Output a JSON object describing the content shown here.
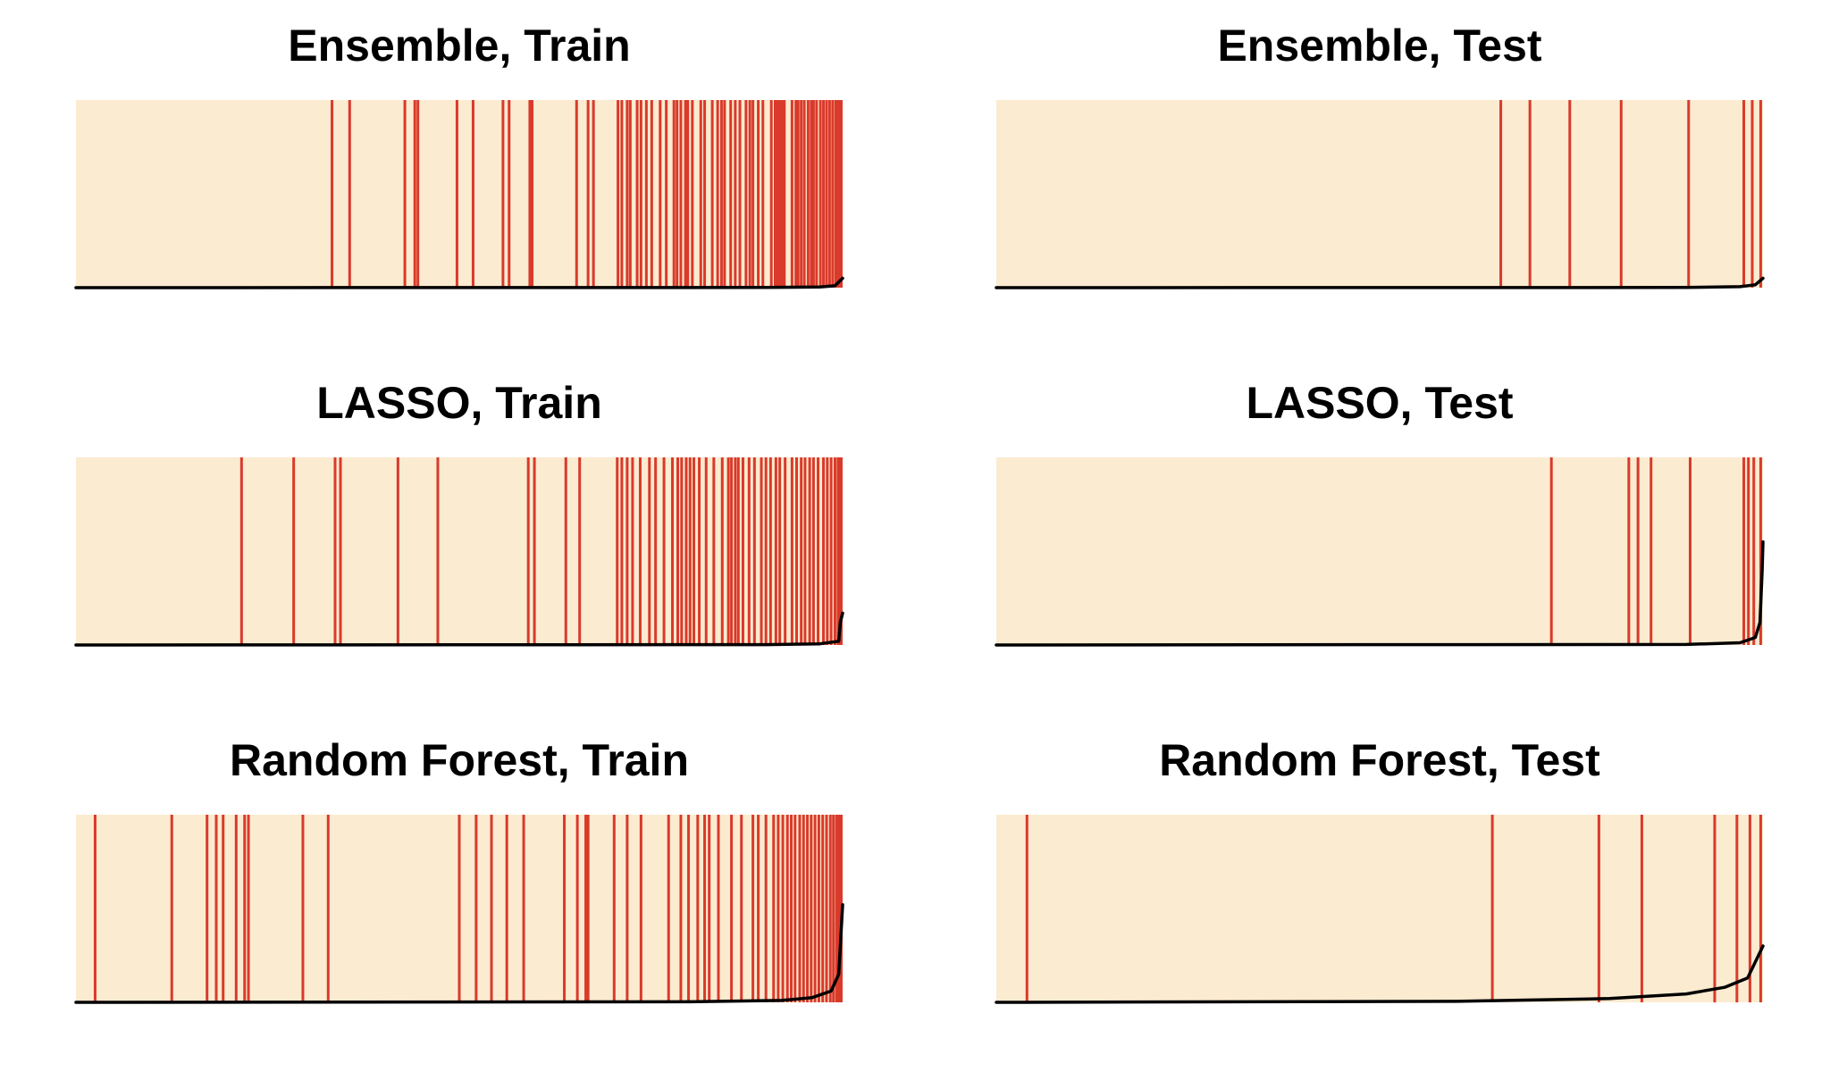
{
  "colors": {
    "background": "#fbebd0",
    "event_line": "#d93a2b",
    "curve": "#000000"
  },
  "chart_data": [
    {
      "type": "event-rug-with-cumulative-curve",
      "title": "Ensemble, Train",
      "events": [
        0.334,
        0.357,
        0.429,
        0.442,
        0.446,
        0.497,
        0.518,
        0.557,
        0.565,
        0.592,
        0.595,
        0.653,
        0.668,
        0.675,
        0.707,
        0.712,
        0.719,
        0.723,
        0.732,
        0.737,
        0.744,
        0.751,
        0.762,
        0.77,
        0.78,
        0.784,
        0.789,
        0.795,
        0.798,
        0.804,
        0.815,
        0.82,
        0.83,
        0.837,
        0.842,
        0.846,
        0.854,
        0.86,
        0.866,
        0.874,
        0.879,
        0.883,
        0.89,
        0.896,
        0.907,
        0.912,
        0.915,
        0.918,
        0.921,
        0.924,
        0.934,
        0.939,
        0.942,
        0.946,
        0.95,
        0.955,
        0.959,
        0.962,
        0.966,
        0.971,
        0.975,
        0.979,
        0.983,
        0.987,
        0.991,
        0.994,
        0.997,
        1.0
      ],
      "curve": [
        [
          0,
          0
        ],
        [
          0.9,
          0.001
        ],
        [
          0.97,
          0.004
        ],
        [
          0.99,
          0.01
        ],
        [
          1.0,
          0.05
        ]
      ]
    },
    {
      "type": "event-rug-with-cumulative-curve",
      "title": "Ensemble, Test",
      "events": [
        0.658,
        0.696,
        0.748,
        0.815,
        0.903,
        0.975,
        0.986,
        0.997
      ],
      "curve": [
        [
          0,
          0
        ],
        [
          0.9,
          0.001
        ],
        [
          0.97,
          0.005
        ],
        [
          0.99,
          0.015
        ],
        [
          1.0,
          0.05
        ]
      ]
    },
    {
      "type": "event-rug-with-cumulative-curve",
      "title": "LASSO, Train",
      "events": [
        0.216,
        0.284,
        0.338,
        0.345,
        0.42,
        0.472,
        0.59,
        0.598,
        0.639,
        0.657,
        0.706,
        0.712,
        0.719,
        0.726,
        0.736,
        0.748,
        0.756,
        0.767,
        0.778,
        0.785,
        0.79,
        0.796,
        0.801,
        0.806,
        0.813,
        0.822,
        0.832,
        0.843,
        0.851,
        0.855,
        0.86,
        0.864,
        0.87,
        0.878,
        0.885,
        0.894,
        0.9,
        0.906,
        0.913,
        0.918,
        0.925,
        0.934,
        0.94,
        0.946,
        0.951,
        0.957,
        0.962,
        0.968,
        0.975,
        0.98,
        0.985,
        0.99,
        0.994,
        0.997,
        1.0
      ],
      "curve": [
        [
          0,
          0
        ],
        [
          0.9,
          0.002
        ],
        [
          0.97,
          0.006
        ],
        [
          0.995,
          0.02
        ],
        [
          0.997,
          0.12
        ],
        [
          1.0,
          0.17
        ]
      ]
    },
    {
      "type": "event-rug-with-cumulative-curve",
      "title": "LASSO, Test",
      "events": [
        0.724,
        0.825,
        0.837,
        0.854,
        0.905,
        0.975,
        0.981,
        0.988,
        0.997
      ],
      "curve": [
        [
          0,
          0
        ],
        [
          0.9,
          0.003
        ],
        [
          0.97,
          0.012
        ],
        [
          0.99,
          0.04
        ],
        [
          0.996,
          0.12
        ],
        [
          0.999,
          0.4
        ],
        [
          1.0,
          0.55
        ]
      ]
    },
    {
      "type": "event-rug-with-cumulative-curve",
      "title": "Random Forest, Train",
      "events": [
        0.025,
        0.125,
        0.171,
        0.183,
        0.192,
        0.209,
        0.22,
        0.225,
        0.296,
        0.329,
        0.5,
        0.522,
        0.542,
        0.562,
        0.584,
        0.637,
        0.654,
        0.665,
        0.668,
        0.702,
        0.719,
        0.737,
        0.773,
        0.789,
        0.799,
        0.811,
        0.82,
        0.826,
        0.838,
        0.855,
        0.868,
        0.883,
        0.89,
        0.9,
        0.91,
        0.916,
        0.922,
        0.928,
        0.933,
        0.938,
        0.944,
        0.949,
        0.954,
        0.959,
        0.964,
        0.969,
        0.974,
        0.979,
        0.984,
        0.988,
        0.992,
        0.995,
        0.998,
        1.0
      ],
      "curve": [
        [
          0,
          0
        ],
        [
          0.8,
          0.003
        ],
        [
          0.92,
          0.01
        ],
        [
          0.96,
          0.025
        ],
        [
          0.985,
          0.06
        ],
        [
          0.995,
          0.15
        ],
        [
          1.0,
          0.52
        ]
      ]
    },
    {
      "type": "event-rug-with-cumulative-curve",
      "title": "Random Forest, Test",
      "events": [
        0.04,
        0.647,
        0.786,
        0.842,
        0.937,
        0.966,
        0.983,
        0.997
      ],
      "curve": [
        [
          0,
          0
        ],
        [
          0.6,
          0.005
        ],
        [
          0.8,
          0.02
        ],
        [
          0.9,
          0.045
        ],
        [
          0.95,
          0.08
        ],
        [
          0.98,
          0.13
        ],
        [
          1.0,
          0.3
        ]
      ]
    }
  ]
}
